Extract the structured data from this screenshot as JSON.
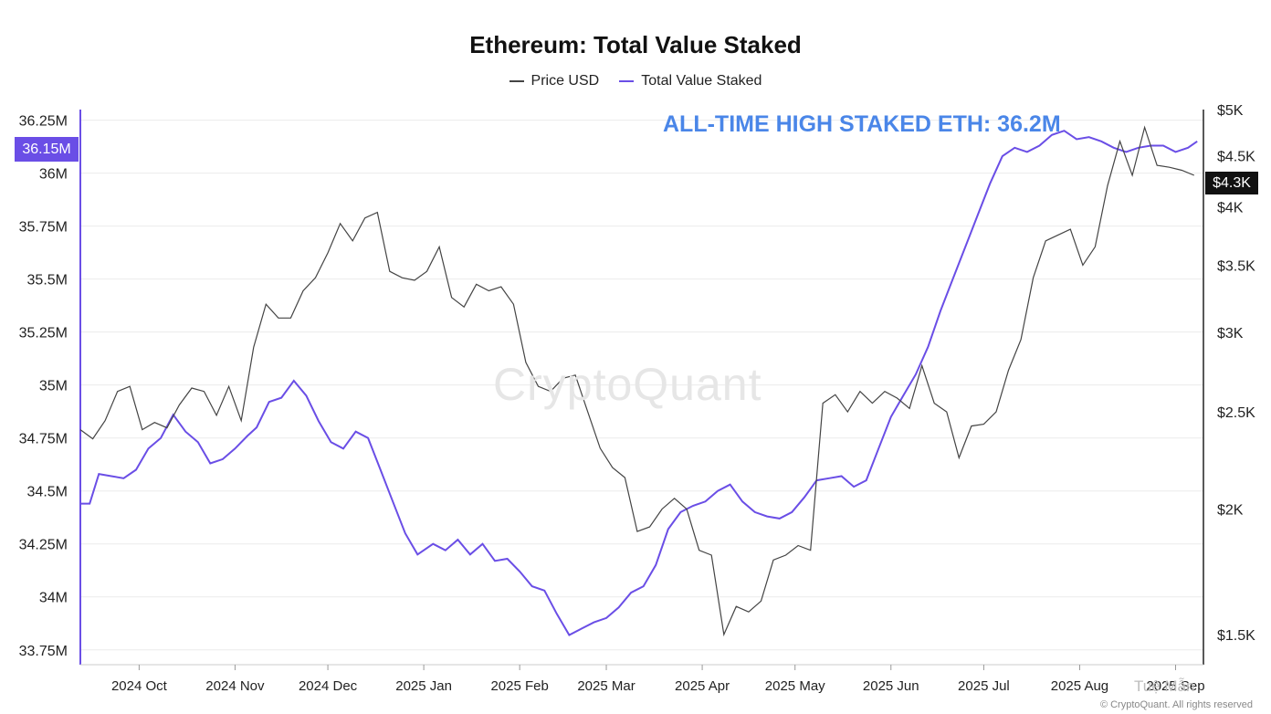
{
  "chart_data": {
    "type": "line",
    "title": "Ethereum: Total Value Staked",
    "legend": {
      "placement": "top-center",
      "entries": [
        "Price USD",
        "Total Value Staked"
      ]
    },
    "x_axis": {
      "type": "date",
      "range": [
        "2024-09-12",
        "2025-09-10"
      ],
      "ticks": [
        {
          "date": "2024-10-01",
          "label": "2024 Oct"
        },
        {
          "date": "2024-11-01",
          "label": "2024 Nov"
        },
        {
          "date": "2024-12-01",
          "label": "2024 Dec"
        },
        {
          "date": "2025-01-01",
          "label": "2025 Jan"
        },
        {
          "date": "2025-02-01",
          "label": "2025 Feb"
        },
        {
          "date": "2025-03-01",
          "label": "2025 Mar"
        },
        {
          "date": "2025-04-01",
          "label": "2025 Apr"
        },
        {
          "date": "2025-05-01",
          "label": "2025 May"
        },
        {
          "date": "2025-06-01",
          "label": "2025 Jun"
        },
        {
          "date": "2025-07-01",
          "label": "2025 Jul"
        },
        {
          "date": "2025-08-01",
          "label": "2025 Aug"
        },
        {
          "date": "2025-09-01",
          "label": "2025 Sep"
        }
      ]
    },
    "y_left": {
      "range": [
        33.68,
        36.3
      ],
      "unit": "M",
      "ticks": [
        {
          "v": 33.75,
          "label": "33.75M"
        },
        {
          "v": 34,
          "label": "34M"
        },
        {
          "v": 34.25,
          "label": "34.25M"
        },
        {
          "v": 34.5,
          "label": "34.5M"
        },
        {
          "v": 34.75,
          "label": "34.75M"
        },
        {
          "v": 35,
          "label": "35M"
        },
        {
          "v": 35.25,
          "label": "35.25M"
        },
        {
          "v": 35.5,
          "label": "35.5M"
        },
        {
          "v": 35.75,
          "label": "35.75M"
        },
        {
          "v": 36,
          "label": "36M"
        },
        {
          "v": 36.25,
          "label": "36.25M"
        }
      ]
    },
    "y_right": {
      "scale": "log",
      "range": [
        1400,
        5000
      ],
      "ticks": [
        {
          "v": 1500,
          "label": "$1.5K"
        },
        {
          "v": 2000,
          "label": "$2K"
        },
        {
          "v": 2500,
          "label": "$2.5K"
        },
        {
          "v": 3000,
          "label": "$3K"
        },
        {
          "v": 3500,
          "label": "$3.5K"
        },
        {
          "v": 4000,
          "label": "$4K"
        },
        {
          "v": 4500,
          "label": "$4.5K"
        },
        {
          "v": 5000,
          "label": "$5K"
        }
      ]
    },
    "grid": "horizontal",
    "series": [
      {
        "name": "Total Value Staked",
        "axis": "left",
        "color": "#6a4ee6",
        "points": [
          [
            "2024-09-12",
            34.44
          ],
          [
            "2024-09-15",
            34.44
          ],
          [
            "2024-09-18",
            34.58
          ],
          [
            "2024-09-22",
            34.57
          ],
          [
            "2024-09-26",
            34.56
          ],
          [
            "2024-09-30",
            34.6
          ],
          [
            "2024-10-04",
            34.7
          ],
          [
            "2024-10-08",
            34.75
          ],
          [
            "2024-10-12",
            34.86
          ],
          [
            "2024-10-16",
            34.78
          ],
          [
            "2024-10-20",
            34.73
          ],
          [
            "2024-10-24",
            34.63
          ],
          [
            "2024-10-28",
            34.65
          ],
          [
            "2024-11-01",
            34.7
          ],
          [
            "2024-11-05",
            34.76
          ],
          [
            "2024-11-08",
            34.8
          ],
          [
            "2024-11-12",
            34.92
          ],
          [
            "2024-11-16",
            34.94
          ],
          [
            "2024-11-20",
            35.02
          ],
          [
            "2024-11-24",
            34.95
          ],
          [
            "2024-11-28",
            34.83
          ],
          [
            "2024-12-02",
            34.73
          ],
          [
            "2024-12-06",
            34.7
          ],
          [
            "2024-12-10",
            34.78
          ],
          [
            "2024-12-14",
            34.75
          ],
          [
            "2024-12-18",
            34.6
          ],
          [
            "2024-12-22",
            34.45
          ],
          [
            "2024-12-26",
            34.3
          ],
          [
            "2024-12-30",
            34.2
          ],
          [
            "2025-01-04",
            34.25
          ],
          [
            "2025-01-08",
            34.22
          ],
          [
            "2025-01-12",
            34.27
          ],
          [
            "2025-01-16",
            34.2
          ],
          [
            "2025-01-20",
            34.25
          ],
          [
            "2025-01-24",
            34.17
          ],
          [
            "2025-01-28",
            34.18
          ],
          [
            "2025-02-01",
            34.12
          ],
          [
            "2025-02-05",
            34.05
          ],
          [
            "2025-02-09",
            34.03
          ],
          [
            "2025-02-13",
            33.92
          ],
          [
            "2025-02-17",
            33.82
          ],
          [
            "2025-02-21",
            33.85
          ],
          [
            "2025-02-25",
            33.88
          ],
          [
            "2025-03-01",
            33.9
          ],
          [
            "2025-03-05",
            33.95
          ],
          [
            "2025-03-09",
            34.02
          ],
          [
            "2025-03-13",
            34.05
          ],
          [
            "2025-03-17",
            34.15
          ],
          [
            "2025-03-21",
            34.32
          ],
          [
            "2025-03-25",
            34.4
          ],
          [
            "2025-03-29",
            34.43
          ],
          [
            "2025-04-02",
            34.45
          ],
          [
            "2025-04-06",
            34.5
          ],
          [
            "2025-04-10",
            34.53
          ],
          [
            "2025-04-14",
            34.45
          ],
          [
            "2025-04-18",
            34.4
          ],
          [
            "2025-04-22",
            34.38
          ],
          [
            "2025-04-26",
            34.37
          ],
          [
            "2025-04-30",
            34.4
          ],
          [
            "2025-05-04",
            34.47
          ],
          [
            "2025-05-08",
            34.55
          ],
          [
            "2025-05-12",
            34.56
          ],
          [
            "2025-05-16",
            34.57
          ],
          [
            "2025-05-20",
            34.52
          ],
          [
            "2025-05-24",
            34.55
          ],
          [
            "2025-05-28",
            34.7
          ],
          [
            "2025-06-01",
            34.85
          ],
          [
            "2025-06-05",
            34.95
          ],
          [
            "2025-06-09",
            35.05
          ],
          [
            "2025-06-13",
            35.18
          ],
          [
            "2025-06-17",
            35.35
          ],
          [
            "2025-06-21",
            35.5
          ],
          [
            "2025-06-25",
            35.65
          ],
          [
            "2025-06-29",
            35.8
          ],
          [
            "2025-07-03",
            35.95
          ],
          [
            "2025-07-07",
            36.08
          ],
          [
            "2025-07-11",
            36.12
          ],
          [
            "2025-07-15",
            36.1
          ],
          [
            "2025-07-19",
            36.13
          ],
          [
            "2025-07-23",
            36.18
          ],
          [
            "2025-07-27",
            36.2
          ],
          [
            "2025-07-31",
            36.16
          ],
          [
            "2025-08-04",
            36.17
          ],
          [
            "2025-08-08",
            36.15
          ],
          [
            "2025-08-12",
            36.12
          ],
          [
            "2025-08-16",
            36.1
          ],
          [
            "2025-08-20",
            36.12
          ],
          [
            "2025-08-24",
            36.13
          ],
          [
            "2025-08-28",
            36.13
          ],
          [
            "2025-09-01",
            36.1
          ],
          [
            "2025-09-05",
            36.12
          ],
          [
            "2025-09-08",
            36.15
          ]
        ]
      },
      {
        "name": "Price USD",
        "axis": "right",
        "color": "#444444",
        "points": [
          [
            "2024-09-12",
            2400
          ],
          [
            "2024-09-16",
            2350
          ],
          [
            "2024-09-20",
            2450
          ],
          [
            "2024-09-24",
            2620
          ],
          [
            "2024-09-28",
            2650
          ],
          [
            "2024-10-02",
            2400
          ],
          [
            "2024-10-06",
            2440
          ],
          [
            "2024-10-10",
            2410
          ],
          [
            "2024-10-14",
            2540
          ],
          [
            "2024-10-18",
            2640
          ],
          [
            "2024-10-22",
            2620
          ],
          [
            "2024-10-26",
            2480
          ],
          [
            "2024-10-30",
            2650
          ],
          [
            "2024-11-03",
            2450
          ],
          [
            "2024-11-07",
            2900
          ],
          [
            "2024-11-11",
            3200
          ],
          [
            "2024-11-15",
            3100
          ],
          [
            "2024-11-19",
            3100
          ],
          [
            "2024-11-23",
            3300
          ],
          [
            "2024-11-27",
            3400
          ],
          [
            "2024-12-01",
            3600
          ],
          [
            "2024-12-05",
            3850
          ],
          [
            "2024-12-09",
            3700
          ],
          [
            "2024-12-13",
            3900
          ],
          [
            "2024-12-17",
            3950
          ],
          [
            "2024-12-21",
            3450
          ],
          [
            "2024-12-25",
            3400
          ],
          [
            "2024-12-29",
            3380
          ],
          [
            "2025-01-02",
            3450
          ],
          [
            "2025-01-06",
            3650
          ],
          [
            "2025-01-10",
            3250
          ],
          [
            "2025-01-14",
            3180
          ],
          [
            "2025-01-18",
            3350
          ],
          [
            "2025-01-22",
            3300
          ],
          [
            "2025-01-26",
            3330
          ],
          [
            "2025-01-30",
            3200
          ],
          [
            "2025-02-03",
            2800
          ],
          [
            "2025-02-07",
            2650
          ],
          [
            "2025-02-11",
            2620
          ],
          [
            "2025-02-15",
            2700
          ],
          [
            "2025-02-19",
            2720
          ],
          [
            "2025-02-23",
            2500
          ],
          [
            "2025-02-27",
            2300
          ],
          [
            "2025-03-03",
            2200
          ],
          [
            "2025-03-07",
            2150
          ],
          [
            "2025-03-11",
            1900
          ],
          [
            "2025-03-15",
            1920
          ],
          [
            "2025-03-19",
            2000
          ],
          [
            "2025-03-23",
            2050
          ],
          [
            "2025-03-27",
            2000
          ],
          [
            "2025-03-31",
            1820
          ],
          [
            "2025-04-04",
            1800
          ],
          [
            "2025-04-08",
            1500
          ],
          [
            "2025-04-12",
            1600
          ],
          [
            "2025-04-16",
            1580
          ],
          [
            "2025-04-20",
            1620
          ],
          [
            "2025-04-24",
            1780
          ],
          [
            "2025-04-28",
            1800
          ],
          [
            "2025-05-02",
            1840
          ],
          [
            "2025-05-06",
            1820
          ],
          [
            "2025-05-10",
            2550
          ],
          [
            "2025-05-14",
            2600
          ],
          [
            "2025-05-18",
            2500
          ],
          [
            "2025-05-22",
            2620
          ],
          [
            "2025-05-26",
            2550
          ],
          [
            "2025-05-30",
            2620
          ],
          [
            "2025-06-03",
            2580
          ],
          [
            "2025-06-07",
            2520
          ],
          [
            "2025-06-11",
            2780
          ],
          [
            "2025-06-15",
            2550
          ],
          [
            "2025-06-19",
            2500
          ],
          [
            "2025-06-23",
            2250
          ],
          [
            "2025-06-27",
            2420
          ],
          [
            "2025-07-01",
            2430
          ],
          [
            "2025-07-05",
            2500
          ],
          [
            "2025-07-09",
            2750
          ],
          [
            "2025-07-13",
            2950
          ],
          [
            "2025-07-17",
            3400
          ],
          [
            "2025-07-21",
            3700
          ],
          [
            "2025-07-25",
            3750
          ],
          [
            "2025-07-29",
            3800
          ],
          [
            "2025-08-02",
            3500
          ],
          [
            "2025-08-06",
            3650
          ],
          [
            "2025-08-10",
            4200
          ],
          [
            "2025-08-14",
            4650
          ],
          [
            "2025-08-18",
            4300
          ],
          [
            "2025-08-22",
            4800
          ],
          [
            "2025-08-26",
            4400
          ],
          [
            "2025-08-30",
            4380
          ],
          [
            "2025-09-03",
            4350
          ],
          [
            "2025-09-07",
            4300
          ]
        ]
      }
    ],
    "annotation": "ALL-TIME HIGH STAKED ETH: 36.2M",
    "latest_left_label": "36.15M",
    "latest_right_label": "$4.3K",
    "watermark": "CryptoQuant",
    "credit": "© CryptoQuant. All rights reserved",
    "author": "Tuệ Mẫn"
  },
  "colors": {
    "staked_line": "#6a4ee6",
    "price_line": "#444444",
    "annotation": "#4a86e8",
    "left_badge": "#6a4ee6",
    "right_badge": "#111111"
  }
}
